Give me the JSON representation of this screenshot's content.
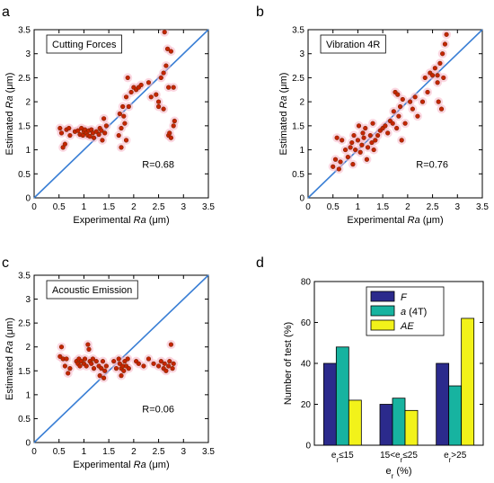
{
  "chart_data": [
    {
      "panel": "a",
      "type": "scatter",
      "title": "Cutting Forces",
      "xlabel_prefix": "Experimental ",
      "xlabel_var": "Ra",
      "xlabel_suffix": " (μm)",
      "ylabel_prefix": "Estimated ",
      "ylabel_var": "Ra",
      "ylabel_suffix": " (μm)",
      "xlim": [
        0,
        3.5
      ],
      "ylim": [
        0,
        3.5
      ],
      "xticks": [
        "0",
        "0.5",
        "1",
        "1.5",
        "2",
        "2.5",
        "3",
        "3.5"
      ],
      "yticks": [
        "0",
        "0.5",
        "1",
        "1.5",
        "2",
        "2.5",
        "3",
        "3.5"
      ],
      "annotation": "R=0.68",
      "reference_line": [
        [
          0,
          0
        ],
        [
          3.5,
          3.5
        ]
      ],
      "points": [
        [
          0.52,
          1.45
        ],
        [
          0.55,
          1.35
        ],
        [
          0.58,
          1.05
        ],
        [
          0.62,
          1.12
        ],
        [
          0.65,
          1.42
        ],
        [
          0.7,
          1.45
        ],
        [
          0.72,
          1.3
        ],
        [
          0.82,
          1.38
        ],
        [
          0.88,
          1.4
        ],
        [
          0.92,
          1.32
        ],
        [
          0.95,
          1.45
        ],
        [
          0.98,
          1.3
        ],
        [
          1.0,
          1.38
        ],
        [
          1.02,
          1.42
        ],
        [
          1.05,
          1.35
        ],
        [
          1.08,
          1.3
        ],
        [
          1.1,
          1.4
        ],
        [
          1.12,
          1.28
        ],
        [
          1.15,
          1.42
        ],
        [
          1.18,
          1.35
        ],
        [
          1.2,
          1.25
        ],
        [
          1.25,
          1.38
        ],
        [
          1.3,
          1.32
        ],
        [
          1.32,
          1.45
        ],
        [
          1.35,
          1.4
        ],
        [
          1.37,
          1.2
        ],
        [
          1.4,
          1.65
        ],
        [
          1.42,
          1.35
        ],
        [
          1.45,
          1.5
        ],
        [
          1.7,
          1.3
        ],
        [
          1.72,
          1.75
        ],
        [
          1.75,
          1.45
        ],
        [
          1.75,
          1.05
        ],
        [
          1.78,
          1.9
        ],
        [
          1.8,
          1.7
        ],
        [
          1.82,
          1.55
        ],
        [
          1.85,
          2.1
        ],
        [
          1.85,
          1.2
        ],
        [
          1.88,
          2.5
        ],
        [
          1.9,
          1.9
        ],
        [
          1.95,
          2.2
        ],
        [
          2.0,
          2.3
        ],
        [
          2.05,
          2.25
        ],
        [
          2.1,
          2.3
        ],
        [
          2.15,
          2.35
        ],
        [
          2.3,
          2.4
        ],
        [
          2.35,
          2.1
        ],
        [
          2.45,
          2.15
        ],
        [
          2.5,
          2.0
        ],
        [
          2.5,
          1.9
        ],
        [
          2.55,
          2.5
        ],
        [
          2.6,
          2.6
        ],
        [
          2.6,
          1.85
        ],
        [
          2.62,
          3.45
        ],
        [
          2.65,
          2.75
        ],
        [
          2.68,
          3.1
        ],
        [
          2.7,
          2.3
        ],
        [
          2.7,
          1.3
        ],
        [
          2.72,
          1.35
        ],
        [
          2.75,
          3.05
        ],
        [
          2.8,
          1.5
        ],
        [
          2.82,
          1.6
        ],
        [
          2.8,
          2.3
        ],
        [
          2.75,
          1.25
        ]
      ]
    },
    {
      "panel": "b",
      "type": "scatter",
      "title": "Vibration 4R",
      "xlabel_prefix": "Experimental ",
      "xlabel_var": "Ra",
      "xlabel_suffix": " (μm)",
      "ylabel_prefix": "Estimated ",
      "ylabel_var": "Ra",
      "ylabel_suffix": " (μm)",
      "xlim": [
        0,
        3.5
      ],
      "ylim": [
        0,
        3.5
      ],
      "xticks": [
        "0",
        "0.5",
        "1",
        "1.5",
        "2",
        "2.5",
        "3",
        "3.5"
      ],
      "yticks": [
        "0",
        "0.5",
        "1",
        "1.5",
        "2",
        "2.5",
        "3",
        "3.5"
      ],
      "annotation": "R=0.76",
      "reference_line": [
        [
          0,
          0
        ],
        [
          3.5,
          3.5
        ]
      ],
      "points": [
        [
          0.5,
          0.65
        ],
        [
          0.55,
          0.8
        ],
        [
          0.58,
          1.25
        ],
        [
          0.62,
          0.6
        ],
        [
          0.65,
          0.75
        ],
        [
          0.68,
          1.2
        ],
        [
          0.75,
          1.0
        ],
        [
          0.8,
          0.85
        ],
        [
          0.85,
          1.05
        ],
        [
          0.88,
          1.15
        ],
        [
          0.9,
          0.7
        ],
        [
          0.92,
          1.3
        ],
        [
          0.95,
          1.0
        ],
        [
          1.0,
          1.2
        ],
        [
          1.02,
          1.5
        ],
        [
          1.05,
          0.95
        ],
        [
          1.08,
          1.1
        ],
        [
          1.1,
          1.35
        ],
        [
          1.12,
          1.25
        ],
        [
          1.15,
          1.45
        ],
        [
          1.18,
          0.8
        ],
        [
          1.2,
          1.05
        ],
        [
          1.25,
          1.3
        ],
        [
          1.28,
          1.15
        ],
        [
          1.3,
          1.55
        ],
        [
          1.32,
          1.0
        ],
        [
          1.35,
          1.2
        ],
        [
          1.4,
          1.3
        ],
        [
          1.45,
          1.4
        ],
        [
          1.5,
          1.45
        ],
        [
          1.55,
          1.5
        ],
        [
          1.6,
          1.35
        ],
        [
          1.65,
          1.6
        ],
        [
          1.7,
          1.55
        ],
        [
          1.72,
          1.8
        ],
        [
          1.75,
          2.2
        ],
        [
          1.78,
          1.45
        ],
        [
          1.8,
          2.15
        ],
        [
          1.82,
          1.7
        ],
        [
          1.85,
          1.9
        ],
        [
          1.88,
          1.2
        ],
        [
          1.9,
          2.05
        ],
        [
          1.95,
          1.55
        ],
        [
          2.05,
          2.0
        ],
        [
          2.1,
          1.85
        ],
        [
          2.15,
          2.1
        ],
        [
          2.2,
          1.7
        ],
        [
          2.3,
          2.0
        ],
        [
          2.35,
          2.5
        ],
        [
          2.4,
          2.2
        ],
        [
          2.45,
          2.6
        ],
        [
          2.5,
          2.55
        ],
        [
          2.55,
          2.7
        ],
        [
          2.6,
          2.4
        ],
        [
          2.62,
          2.0
        ],
        [
          2.65,
          2.8
        ],
        [
          2.7,
          3.0
        ],
        [
          2.72,
          2.5
        ],
        [
          2.75,
          3.2
        ],
        [
          2.78,
          3.4
        ],
        [
          2.68,
          1.85
        ],
        [
          2.6,
          2.55
        ]
      ]
    },
    {
      "panel": "c",
      "type": "scatter",
      "title": "Acoustic Emission",
      "xlabel_prefix": "Experimental ",
      "xlabel_var": "Ra",
      "xlabel_suffix": " (μm)",
      "ylabel_prefix": "Estimated ",
      "ylabel_var": "Ra",
      "ylabel_suffix": " (μm)",
      "xlim": [
        0,
        3.5
      ],
      "ylim": [
        0,
        3.5
      ],
      "xticks": [
        "0",
        "0.5",
        "1",
        "1.5",
        "2",
        "2.5",
        "3",
        "3.5"
      ],
      "yticks": [
        "0",
        "0.5",
        "1",
        "1.5",
        "2",
        "2.5",
        "3",
        "3.5"
      ],
      "annotation": "R=0.06",
      "reference_line": [
        [
          0,
          0
        ],
        [
          3.5,
          3.5
        ]
      ],
      "points": [
        [
          0.52,
          1.8
        ],
        [
          0.55,
          2.0
        ],
        [
          0.58,
          1.75
        ],
        [
          0.62,
          1.6
        ],
        [
          0.65,
          1.75
        ],
        [
          0.68,
          1.45
        ],
        [
          0.72,
          1.55
        ],
        [
          0.85,
          1.7
        ],
        [
          0.88,
          1.65
        ],
        [
          0.9,
          1.75
        ],
        [
          0.92,
          1.6
        ],
        [
          0.95,
          1.7
        ],
        [
          1.0,
          1.65
        ],
        [
          1.02,
          1.75
        ],
        [
          1.05,
          1.6
        ],
        [
          1.08,
          2.05
        ],
        [
          1.1,
          1.95
        ],
        [
          1.12,
          1.7
        ],
        [
          1.15,
          1.65
        ],
        [
          1.18,
          1.75
        ],
        [
          1.2,
          1.55
        ],
        [
          1.25,
          1.7
        ],
        [
          1.3,
          1.6
        ],
        [
          1.32,
          1.4
        ],
        [
          1.35,
          1.55
        ],
        [
          1.38,
          1.7
        ],
        [
          1.4,
          1.35
        ],
        [
          1.42,
          1.5
        ],
        [
          1.45,
          1.6
        ],
        [
          1.6,
          1.7
        ],
        [
          1.65,
          1.55
        ],
        [
          1.7,
          1.75
        ],
        [
          1.72,
          1.65
        ],
        [
          1.75,
          1.55
        ],
        [
          1.75,
          1.4
        ],
        [
          1.78,
          1.6
        ],
        [
          1.8,
          1.5
        ],
        [
          1.82,
          1.7
        ],
        [
          1.85,
          1.6
        ],
        [
          1.88,
          1.75
        ],
        [
          1.9,
          1.55
        ],
        [
          2.05,
          1.7
        ],
        [
          2.1,
          1.65
        ],
        [
          2.2,
          1.6
        ],
        [
          2.3,
          1.75
        ],
        [
          2.4,
          1.65
        ],
        [
          2.5,
          1.6
        ],
        [
          2.55,
          1.7
        ],
        [
          2.6,
          1.55
        ],
        [
          2.62,
          1.65
        ],
        [
          2.65,
          1.5
        ],
        [
          2.7,
          1.6
        ],
        [
          2.72,
          1.7
        ],
        [
          2.75,
          2.05
        ],
        [
          2.78,
          1.55
        ],
        [
          2.8,
          1.65
        ]
      ]
    },
    {
      "panel": "d",
      "type": "bar",
      "categories": [
        {
          "pre": "e",
          "sub": "r",
          "post": "≤15"
        },
        {
          "pre": "15<e",
          "sub": "r",
          "post": "≤25"
        },
        {
          "pre": "e",
          "sub": "r",
          "post": ">25"
        }
      ],
      "xlabel": {
        "pre": "e",
        "sub": "r",
        "post": " (%)"
      },
      "ylabel": "Number of test (%)",
      "ylim": [
        0,
        80
      ],
      "yticks": [
        "0",
        "20",
        "40",
        "60",
        "80"
      ],
      "legend_placement": "top-center",
      "series": [
        {
          "name": "F",
          "name_style": "italic",
          "color": "#2b2a8c",
          "values": [
            40,
            20,
            40
          ]
        },
        {
          "name": "a",
          "name_style": "italic",
          "name_extra": " (4T)",
          "color": "#17b3a0",
          "values": [
            48,
            23,
            29
          ]
        },
        {
          "name": "AE",
          "name_style": "italic",
          "color": "#f2f21a",
          "values": [
            22,
            17,
            62
          ]
        }
      ]
    }
  ]
}
